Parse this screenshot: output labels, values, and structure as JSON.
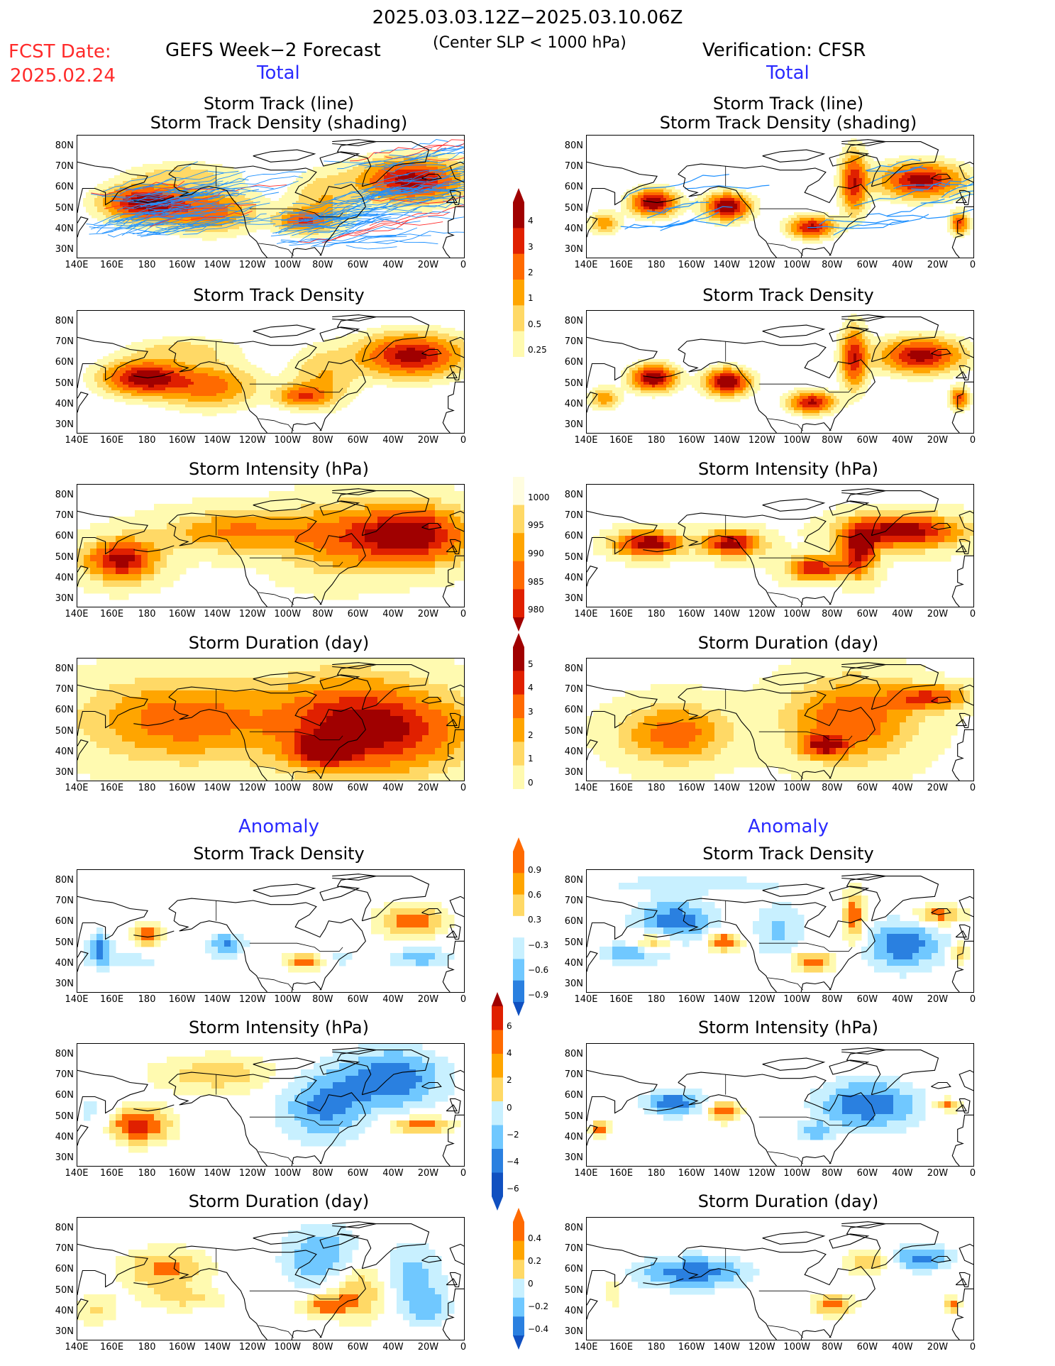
{
  "header": {
    "date_range": "2025.03.03.12Z−2025.03.10.06Z",
    "criterion": "(Center SLP < 1000 hPa)",
    "fcst_label": "FCST Date:",
    "fcst_date": "2025.02.24",
    "left_title": "GEFS Week−2 Forecast",
    "right_title": "Verification: CFSR",
    "section_total": "Total",
    "section_anomaly": "Anomaly"
  },
  "axes": {
    "lat_labels": [
      "80N",
      "70N",
      "60N",
      "50N",
      "40N",
      "30N"
    ],
    "lon_labels": [
      "140E",
      "160E",
      "180",
      "160W",
      "140W",
      "120W",
      "100W",
      "80W",
      "60W",
      "40W",
      "20W",
      "0"
    ]
  },
  "panels": {
    "track_line_1": "Storm Track (line)",
    "track_line_2": "Storm Track Density (shading)",
    "density": "Storm Track Density",
    "intensity": "Storm Intensity (hPa)",
    "duration": "Storm Duration (day)"
  },
  "colorbars": {
    "density_total": [
      "4",
      "3",
      "2",
      "1",
      "0.5",
      "0.25"
    ],
    "intensity_total": [
      "1000",
      "995",
      "990",
      "985",
      "980"
    ],
    "duration_total": [
      "5",
      "4",
      "3",
      "2",
      "1",
      "0"
    ],
    "density_anom": [
      "0.9",
      "0.6",
      "0.3",
      "−0.3",
      "−0.6",
      "−0.9"
    ],
    "intensity_anom": [
      "6",
      "4",
      "2",
      "0",
      "−2",
      "−4",
      "−6"
    ],
    "duration_anom": [
      "0.4",
      "0.2",
      "0",
      "−0.2",
      "−0.4"
    ]
  },
  "colors": {
    "warm": [
      "#fffab0",
      "#ffd966",
      "#ffa500",
      "#ff6a00",
      "#e02000",
      "#a00000"
    ],
    "cool": [
      "#c8f0ff",
      "#70c8ff",
      "#2a80e0",
      "#1050c0"
    ],
    "track_blue": "#1e90ff",
    "track_red": "#ff2a2a"
  }
}
